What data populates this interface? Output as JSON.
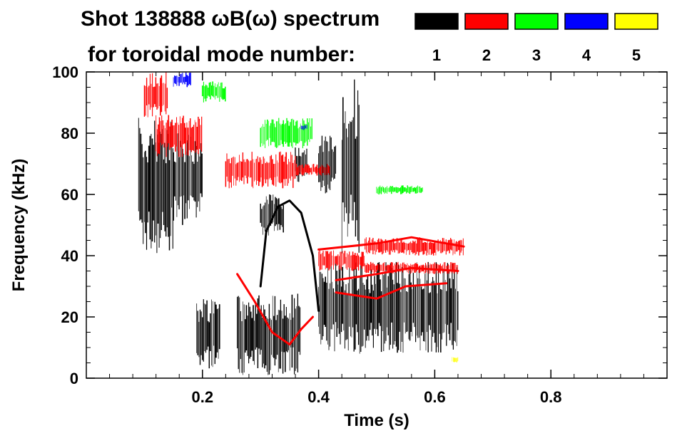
{
  "chart_data": {
    "type": "heatmap",
    "title_line1": "Shot 138888 ωB(ω) spectrum",
    "title_line2": "for toroidal mode number:",
    "xlabel": "Time (s)",
    "ylabel": "Frequency (kHz)",
    "xlim": [
      0.0,
      1.0
    ],
    "ylim": [
      0,
      100
    ],
    "x_ticks": [
      0.2,
      0.4,
      0.6,
      0.8
    ],
    "x_tick_labels": [
      "0.2",
      "0.4",
      "0.6",
      "0.8"
    ],
    "y_ticks": [
      0,
      20,
      40,
      60,
      80,
      100
    ],
    "y_tick_labels": [
      "0",
      "20",
      "40",
      "60",
      "80",
      "100"
    ],
    "legend": {
      "placement": "top-right",
      "entries": [
        {
          "label": "1",
          "color": "#000000"
        },
        {
          "label": "2",
          "color": "#ff0000"
        },
        {
          "label": "3",
          "color": "#00ff00"
        },
        {
          "label": "4",
          "color": "#0000ff"
        },
        {
          "label": "5",
          "color": "#ffff00"
        }
      ]
    },
    "regions": [
      {
        "mode": 1,
        "t": [
          0.09,
          0.15
        ],
        "f": [
          40,
          85
        ]
      },
      {
        "mode": 1,
        "t": [
          0.15,
          0.2
        ],
        "f": [
          50,
          80
        ]
      },
      {
        "mode": 1,
        "t": [
          0.19,
          0.23
        ],
        "f": [
          3,
          26
        ]
      },
      {
        "mode": 1,
        "t": [
          0.26,
          0.37
        ],
        "f": [
          1,
          28
        ]
      },
      {
        "mode": 1,
        "t": [
          0.3,
          0.34
        ],
        "f": [
          46,
          60
        ]
      },
      {
        "mode": 1,
        "t": [
          0.36,
          0.38
        ],
        "f": [
          64,
          76
        ]
      },
      {
        "mode": 1,
        "t": [
          0.4,
          0.43
        ],
        "f": [
          60,
          80
        ]
      },
      {
        "mode": 1,
        "t": [
          0.44,
          0.47
        ],
        "f": [
          40,
          98
        ]
      },
      {
        "mode": 1,
        "t": [
          0.4,
          0.64
        ],
        "f": [
          8,
          38
        ]
      },
      {
        "mode": 2,
        "t": [
          0.1,
          0.14
        ],
        "f": [
          85,
          100
        ]
      },
      {
        "mode": 2,
        "t": [
          0.12,
          0.2
        ],
        "f": [
          72,
          86
        ]
      },
      {
        "mode": 2,
        "t": [
          0.24,
          0.36
        ],
        "f": [
          62,
          74
        ]
      },
      {
        "mode": 2,
        "t": [
          0.36,
          0.42
        ],
        "f": [
          66,
          70
        ]
      },
      {
        "mode": 2,
        "t": [
          0.4,
          0.48
        ],
        "f": [
          35,
          42
        ]
      },
      {
        "mode": 2,
        "t": [
          0.48,
          0.65
        ],
        "f": [
          40,
          46
        ]
      },
      {
        "mode": 2,
        "t": [
          0.48,
          0.64
        ],
        "f": [
          34,
          38
        ]
      },
      {
        "mode": 3,
        "t": [
          0.2,
          0.24
        ],
        "f": [
          90,
          97
        ]
      },
      {
        "mode": 3,
        "t": [
          0.3,
          0.39
        ],
        "f": [
          75,
          85
        ]
      },
      {
        "mode": 3,
        "t": [
          0.5,
          0.58
        ],
        "f": [
          60,
          63
        ]
      },
      {
        "mode": 4,
        "t": [
          0.15,
          0.18
        ],
        "f": [
          95,
          100
        ]
      },
      {
        "mode": 4,
        "t": [
          0.37,
          0.38
        ],
        "f": [
          81,
          83
        ]
      },
      {
        "mode": 5,
        "t": [
          0.63,
          0.64
        ],
        "f": [
          5,
          7
        ]
      }
    ],
    "traces": [
      {
        "mode": 2,
        "points": [
          [
            0.26,
            34
          ],
          [
            0.29,
            25
          ],
          [
            0.32,
            15
          ],
          [
            0.35,
            11
          ],
          [
            0.37,
            16
          ],
          [
            0.39,
            20
          ]
        ]
      },
      {
        "mode": 1,
        "points": [
          [
            0.3,
            30
          ],
          [
            0.31,
            48
          ],
          [
            0.33,
            56
          ],
          [
            0.35,
            58
          ],
          [
            0.37,
            54
          ],
          [
            0.39,
            40
          ],
          [
            0.4,
            22
          ]
        ]
      },
      {
        "mode": 2,
        "points": [
          [
            0.4,
            42
          ],
          [
            0.5,
            44
          ],
          [
            0.56,
            46
          ],
          [
            0.65,
            43
          ]
        ]
      },
      {
        "mode": 2,
        "points": [
          [
            0.43,
            32
          ],
          [
            0.5,
            34
          ],
          [
            0.56,
            36
          ],
          [
            0.64,
            35
          ]
        ]
      },
      {
        "mode": 2,
        "points": [
          [
            0.43,
            28
          ],
          [
            0.5,
            26
          ],
          [
            0.55,
            30
          ],
          [
            0.62,
            31
          ]
        ]
      }
    ]
  }
}
